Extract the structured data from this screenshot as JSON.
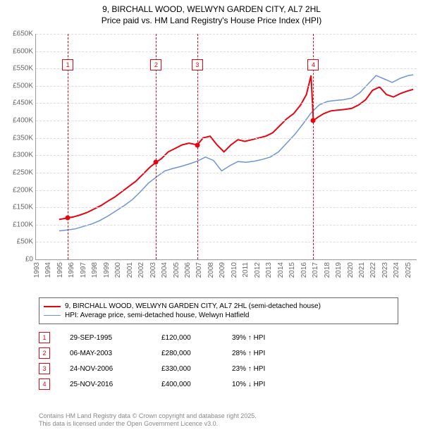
{
  "title_line1": "9, BIRCHALL WOOD, WELWYN GARDEN CITY, AL7 2HL",
  "title_line2": "Price paid vs. HM Land Registry's House Price Index (HPI)",
  "chart": {
    "type": "line",
    "background_color": "#ffffff",
    "grid_color": "#dddddd",
    "axis_color": "#999999",
    "x_years": [
      1993,
      1994,
      1995,
      1996,
      1997,
      1998,
      1999,
      2000,
      2001,
      2002,
      2003,
      2004,
      2005,
      2006,
      2007,
      2008,
      2009,
      2010,
      2011,
      2012,
      2013,
      2014,
      2015,
      2016,
      2017,
      2018,
      2019,
      2020,
      2021,
      2022,
      2023,
      2024,
      2025
    ],
    "xlim": [
      1993,
      2025.8
    ],
    "ylim": [
      0,
      650000
    ],
    "ytick_step": 50000,
    "ytick_labels": [
      "£0",
      "£50K",
      "£100K",
      "£150K",
      "£200K",
      "£250K",
      "£300K",
      "£350K",
      "£400K",
      "£450K",
      "£500K",
      "£550K",
      "£600K",
      "£650K"
    ],
    "label_fontsize": 10,
    "series": {
      "price_paid": {
        "color": "#e30613",
        "width": 2,
        "points": [
          [
            1995.0,
            115000
          ],
          [
            1995.5,
            118000
          ],
          [
            1995.74,
            120000
          ],
          [
            1996.2,
            122000
          ],
          [
            1996.8,
            128000
          ],
          [
            1997.4,
            135000
          ],
          [
            1998.0,
            145000
          ],
          [
            1998.6,
            155000
          ],
          [
            1999.2,
            168000
          ],
          [
            1999.8,
            180000
          ],
          [
            2000.4,
            195000
          ],
          [
            2001.0,
            210000
          ],
          [
            2001.6,
            225000
          ],
          [
            2002.2,
            245000
          ],
          [
            2002.8,
            265000
          ],
          [
            2003.35,
            280000
          ],
          [
            2003.8,
            290000
          ],
          [
            2004.4,
            310000
          ],
          [
            2005.0,
            320000
          ],
          [
            2005.6,
            330000
          ],
          [
            2006.2,
            335000
          ],
          [
            2006.9,
            330000
          ],
          [
            2007.4,
            350000
          ],
          [
            2008.0,
            355000
          ],
          [
            2008.6,
            330000
          ],
          [
            2009.2,
            310000
          ],
          [
            2009.8,
            330000
          ],
          [
            2010.4,
            345000
          ],
          [
            2011.0,
            340000
          ],
          [
            2011.6,
            345000
          ],
          [
            2012.2,
            350000
          ],
          [
            2012.8,
            355000
          ],
          [
            2013.4,
            365000
          ],
          [
            2014.0,
            385000
          ],
          [
            2014.6,
            405000
          ],
          [
            2015.2,
            420000
          ],
          [
            2015.8,
            445000
          ],
          [
            2016.3,
            475000
          ],
          [
            2016.7,
            530000
          ],
          [
            2016.9,
            400000
          ],
          [
            2017.3,
            410000
          ],
          [
            2017.8,
            420000
          ],
          [
            2018.4,
            428000
          ],
          [
            2019.0,
            430000
          ],
          [
            2019.6,
            432000
          ],
          [
            2020.2,
            435000
          ],
          [
            2020.8,
            445000
          ],
          [
            2021.4,
            460000
          ],
          [
            2022.0,
            487000
          ],
          [
            2022.6,
            497000
          ],
          [
            2023.2,
            475000
          ],
          [
            2023.8,
            468000
          ],
          [
            2024.4,
            478000
          ],
          [
            2025.0,
            485000
          ],
          [
            2025.5,
            490000
          ]
        ]
      },
      "hpi": {
        "color": "#6f94d6",
        "width": 1.5,
        "points": [
          [
            1995.0,
            82000
          ],
          [
            1995.7,
            85000
          ],
          [
            1996.4,
            88000
          ],
          [
            1997.1,
            95000
          ],
          [
            1997.8,
            102000
          ],
          [
            1998.5,
            112000
          ],
          [
            1999.2,
            125000
          ],
          [
            1999.9,
            140000
          ],
          [
            2000.6,
            155000
          ],
          [
            2001.3,
            172000
          ],
          [
            2002.0,
            195000
          ],
          [
            2002.7,
            220000
          ],
          [
            2003.4,
            238000
          ],
          [
            2004.1,
            255000
          ],
          [
            2004.8,
            262000
          ],
          [
            2005.5,
            268000
          ],
          [
            2006.2,
            275000
          ],
          [
            2006.9,
            283000
          ],
          [
            2007.6,
            295000
          ],
          [
            2008.3,
            285000
          ],
          [
            2009.0,
            255000
          ],
          [
            2009.7,
            270000
          ],
          [
            2010.4,
            282000
          ],
          [
            2011.1,
            280000
          ],
          [
            2011.8,
            283000
          ],
          [
            2012.5,
            288000
          ],
          [
            2013.2,
            295000
          ],
          [
            2013.9,
            310000
          ],
          [
            2014.6,
            335000
          ],
          [
            2015.3,
            360000
          ],
          [
            2016.0,
            390000
          ],
          [
            2016.7,
            422000
          ],
          [
            2017.4,
            445000
          ],
          [
            2018.1,
            455000
          ],
          [
            2018.8,
            458000
          ],
          [
            2019.5,
            460000
          ],
          [
            2020.2,
            465000
          ],
          [
            2020.9,
            480000
          ],
          [
            2021.6,
            505000
          ],
          [
            2022.3,
            530000
          ],
          [
            2023.0,
            520000
          ],
          [
            2023.7,
            510000
          ],
          [
            2024.4,
            522000
          ],
          [
            2025.1,
            530000
          ],
          [
            2025.5,
            532000
          ]
        ]
      }
    },
    "markers": [
      {
        "n": "1",
        "x": 1995.74,
        "y": 120000,
        "box_y": 560000,
        "color": "#e30613"
      },
      {
        "n": "2",
        "x": 2003.35,
        "y": 280000,
        "box_y": 560000,
        "color": "#e30613"
      },
      {
        "n": "3",
        "x": 2006.9,
        "y": 330000,
        "box_y": 560000,
        "color": "#e30613"
      },
      {
        "n": "4",
        "x": 2016.9,
        "y": 400000,
        "box_y": 560000,
        "color": "#e30613"
      }
    ]
  },
  "legend": {
    "items": [
      {
        "color": "#e30613",
        "width": 2,
        "label": "9, BIRCHALL WOOD, WELWYN GARDEN CITY, AL7 2HL (semi-detached house)"
      },
      {
        "color": "#6f94d6",
        "width": 1.5,
        "label": "HPI: Average price, semi-detached house, Welwyn Hatfield"
      }
    ]
  },
  "sales": [
    {
      "n": "1",
      "date": "29-SEP-1995",
      "price": "£120,000",
      "pct": "39% ↑ HPI",
      "color": "#e30613"
    },
    {
      "n": "2",
      "date": "06-MAY-2003",
      "price": "£280,000",
      "pct": "28% ↑ HPI",
      "color": "#e30613"
    },
    {
      "n": "3",
      "date": "24-NOV-2006",
      "price": "£330,000",
      "pct": "23% ↑ HPI",
      "color": "#e30613"
    },
    {
      "n": "4",
      "date": "25-NOV-2016",
      "price": "£400,000",
      "pct": "10% ↓ HPI",
      "color": "#e30613"
    }
  ],
  "footer_line1": "Contains HM Land Registry data © Crown copyright and database right 2025.",
  "footer_line2": "This data is licensed under the Open Government Licence v3.0."
}
